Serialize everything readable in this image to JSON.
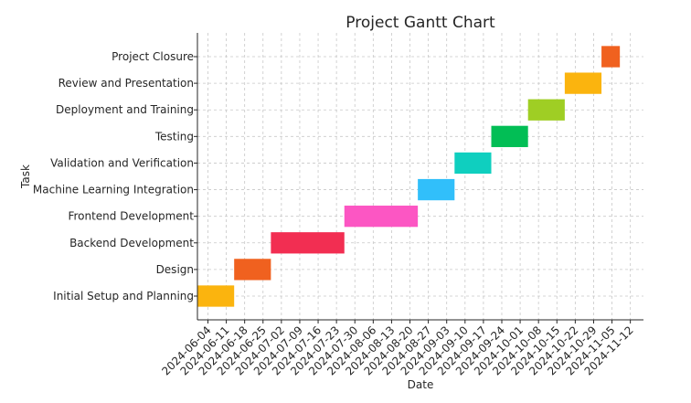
{
  "chart_data": {
    "type": "gantt",
    "title": "Project Gantt Chart",
    "xlabel": "Date",
    "ylabel": "Task",
    "grid": true,
    "x_range": [
      "2024-05-31",
      "2024-11-17"
    ],
    "x_ticks": [
      "2024-06-04",
      "2024-06-11",
      "2024-06-18",
      "2024-06-25",
      "2024-07-02",
      "2024-07-09",
      "2024-07-16",
      "2024-07-23",
      "2024-07-30",
      "2024-08-06",
      "2024-08-13",
      "2024-08-20",
      "2024-08-27",
      "2024-09-03",
      "2024-09-10",
      "2024-09-17",
      "2024-09-24",
      "2024-10-01",
      "2024-10-08",
      "2024-10-15",
      "2024-10-22",
      "2024-10-29",
      "2024-11-05",
      "2024-11-12"
    ],
    "tasks": [
      {
        "name": "Initial Setup and Planning",
        "start": "2024-05-31",
        "end": "2024-06-14",
        "color": "#fbb40e"
      },
      {
        "name": "Design",
        "start": "2024-06-14",
        "end": "2024-06-28",
        "color": "#f0611f"
      },
      {
        "name": "Backend Development",
        "start": "2024-06-28",
        "end": "2024-07-26",
        "color": "#f22e52"
      },
      {
        "name": "Frontend Development",
        "start": "2024-07-26",
        "end": "2024-08-23",
        "color": "#fc56c3"
      },
      {
        "name": "Machine Learning Integration",
        "start": "2024-08-23",
        "end": "2024-09-06",
        "color": "#31bffa"
      },
      {
        "name": "Validation and Verification",
        "start": "2024-09-06",
        "end": "2024-09-20",
        "color": "#0fcfbf"
      },
      {
        "name": "Testing",
        "start": "2024-09-20",
        "end": "2024-10-04",
        "color": "#02be55"
      },
      {
        "name": "Deployment and Training",
        "start": "2024-10-04",
        "end": "2024-10-18",
        "color": "#9fce24"
      },
      {
        "name": "Review and Presentation",
        "start": "2024-10-18",
        "end": "2024-11-01",
        "color": "#fbb40e"
      },
      {
        "name": "Project Closure",
        "start": "2024-11-01",
        "end": "2024-11-08",
        "color": "#f0611f"
      }
    ]
  }
}
